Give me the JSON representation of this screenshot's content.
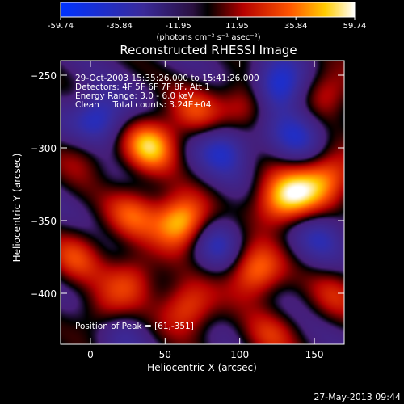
{
  "chart_data": {
    "type": "heatmap",
    "title": "Reconstructed RHESSI Image",
    "xlabel": "Heliocentric X (arcsec)",
    "ylabel": "Heliocentric Y (arcsec)",
    "xlim": [
      -20,
      170
    ],
    "ylim": [
      -435,
      -240
    ],
    "x_ticks": [
      0,
      50,
      100,
      150
    ],
    "y_ticks": [
      -250,
      -300,
      -350,
      -400
    ],
    "colorbar": {
      "min": -59.74,
      "max": 59.74,
      "ticks": [
        "-59.74",
        "-35.84",
        "-11.95",
        "11.95",
        "35.84",
        "59.74"
      ],
      "unit_label": "(photons cm⁻² s⁻¹ asec⁻²)"
    },
    "annotations": [
      "29-Oct-2003 15:35:26.000 to 15:41:26.000",
      "Detectors: 4F 5F 6F 7F 8F, Att 1",
      "Energy Range: 3.0 - 6.0 keV",
      "Clean     Total counts: 3.24E+04"
    ],
    "peak_label": "Position of Peak = [61,-351]",
    "peak": [
      61,
      -351
    ],
    "timestamp": "27-May-2013 09:44",
    "blobs": [
      {
        "x": 61,
        "y": -351,
        "value": 59.74
      },
      {
        "x": 28,
        "y": -345,
        "value": 32
      },
      {
        "x": 40,
        "y": -298,
        "value": 52
      },
      {
        "x": 70,
        "y": -275,
        "value": 28
      },
      {
        "x": 105,
        "y": -270,
        "value": 34
      },
      {
        "x": 158,
        "y": -262,
        "value": 30
      },
      {
        "x": 160,
        "y": -320,
        "value": 40
      },
      {
        "x": 140,
        "y": -330,
        "value": 36
      },
      {
        "x": 110,
        "y": -385,
        "value": 46
      },
      {
        "x": 65,
        "y": -410,
        "value": 38
      },
      {
        "x": 28,
        "y": -390,
        "value": 30
      },
      {
        "x": 10,
        "y": -415,
        "value": 26
      },
      {
        "x": -10,
        "y": -375,
        "value": 28
      },
      {
        "x": -5,
        "y": -305,
        "value": 18
      },
      {
        "x": 120,
        "y": -430,
        "value": 24
      },
      {
        "x": 125,
        "y": -338,
        "value": 38
      },
      {
        "x": 165,
        "y": -400,
        "value": 22
      }
    ],
    "negatives": [
      {
        "x": 5,
        "y": -280,
        "value": -40
      },
      {
        "x": 90,
        "y": -300,
        "value": -34
      },
      {
        "x": 125,
        "y": -258,
        "value": -50
      },
      {
        "x": 140,
        "y": -290,
        "value": -30
      },
      {
        "x": 20,
        "y": -425,
        "value": -20
      },
      {
        "x": 155,
        "y": -360,
        "value": -24
      },
      {
        "x": 85,
        "y": -365,
        "value": -28
      }
    ]
  }
}
